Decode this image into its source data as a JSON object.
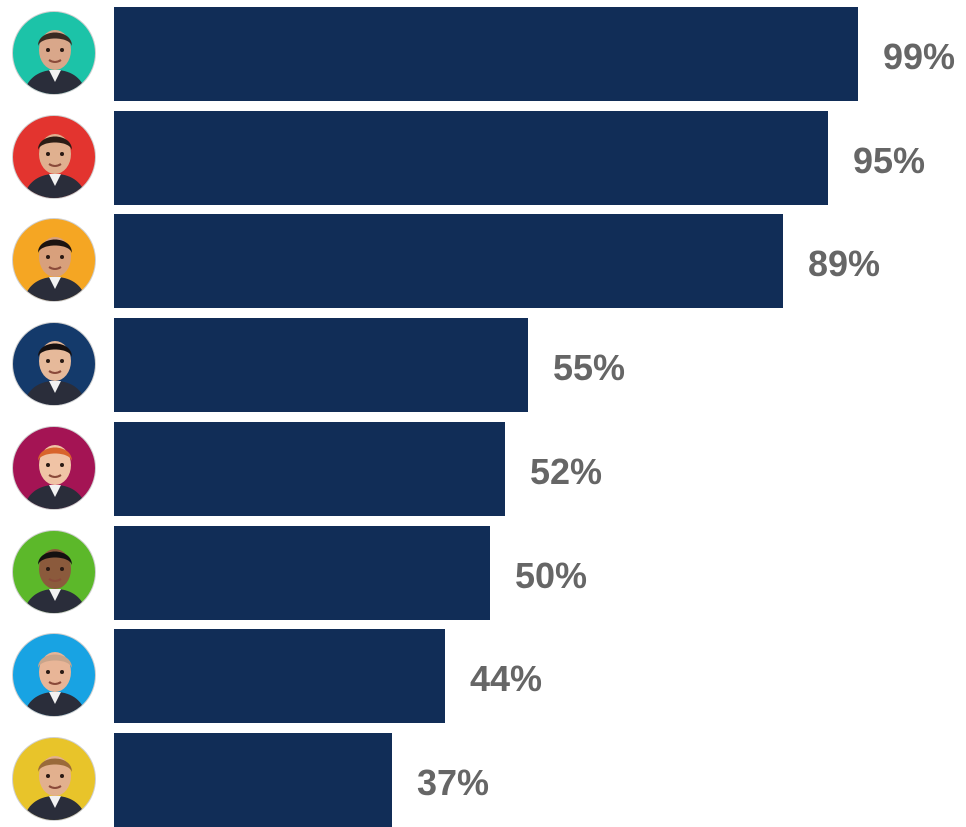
{
  "chart_data": {
    "type": "bar",
    "orientation": "horizontal",
    "title": "",
    "xlabel": "",
    "ylabel": "",
    "xlim": [
      0,
      100
    ],
    "grid": false,
    "legend": "none",
    "bar_color": "#112d57",
    "label_color": "#666666",
    "values": [
      99,
      95,
      89,
      55,
      52,
      50,
      44,
      37
    ],
    "value_labels": [
      "99%",
      "95%",
      "89%",
      "55%",
      "52%",
      "50%",
      "44%",
      "37%"
    ],
    "avatar_backgrounds": [
      "#1cc3a8",
      "#e3342f",
      "#f5a623",
      "#143a6b",
      "#a41454",
      "#5cb82a",
      "#18a3e3",
      "#e8c42a"
    ]
  }
}
